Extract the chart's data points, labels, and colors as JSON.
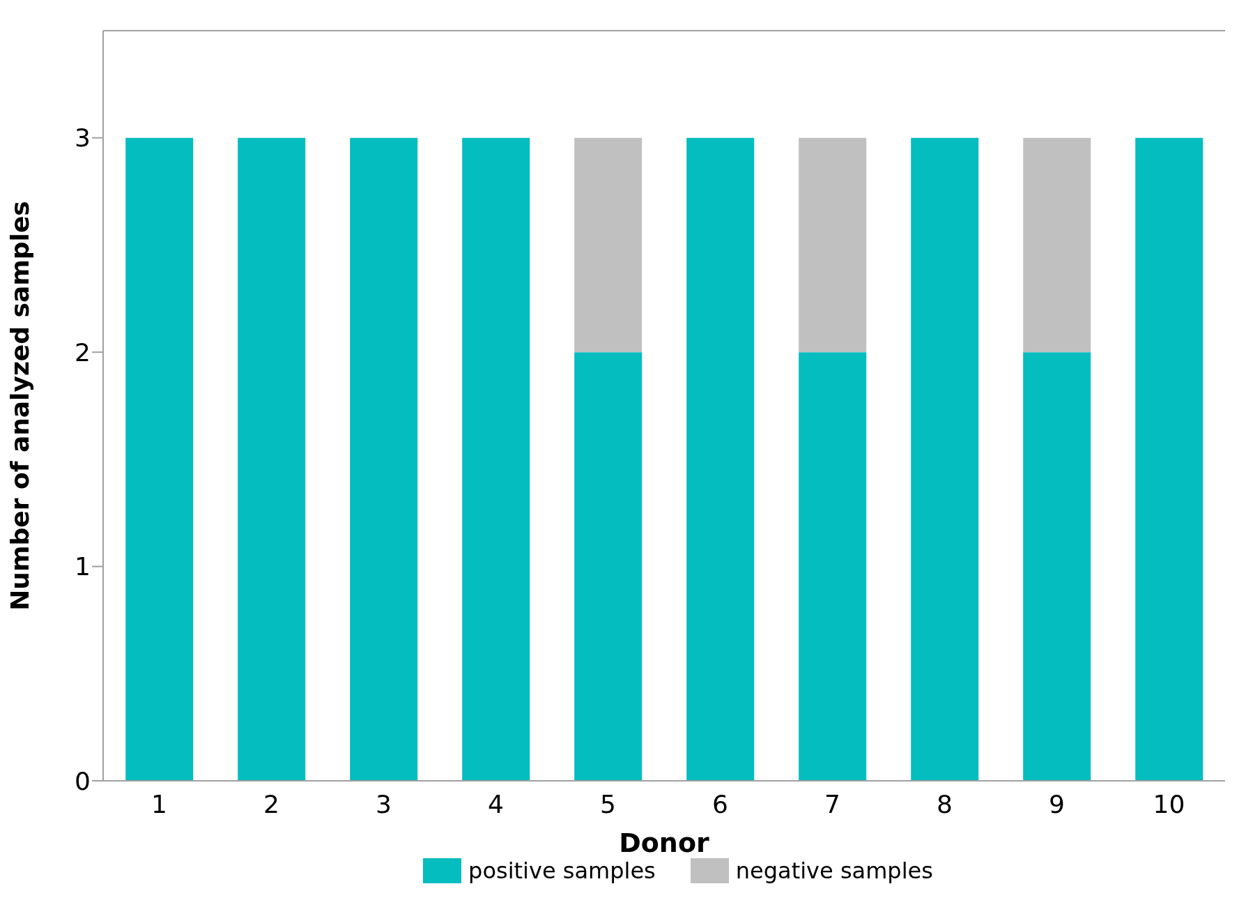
{
  "chart_data": {
    "type": "bar",
    "stacked": true,
    "xlabel": "Donor",
    "ylabel": "Number of analyzed samples",
    "categories": [
      "1",
      "2",
      "3",
      "4",
      "5",
      "6",
      "7",
      "8",
      "9",
      "10"
    ],
    "series": [
      {
        "name": "positive samples",
        "color": "#04bdbe",
        "values": [
          3,
          3,
          3,
          3,
          2,
          3,
          2,
          3,
          2,
          3
        ]
      },
      {
        "name": "negative samples",
        "color": "#c0c0c0",
        "values": [
          0,
          0,
          0,
          0,
          1,
          0,
          1,
          0,
          1,
          0
        ]
      }
    ],
    "ylim": [
      0,
      3.5
    ],
    "yticks": [
      0,
      1,
      2,
      3
    ],
    "legend": "bottom"
  }
}
